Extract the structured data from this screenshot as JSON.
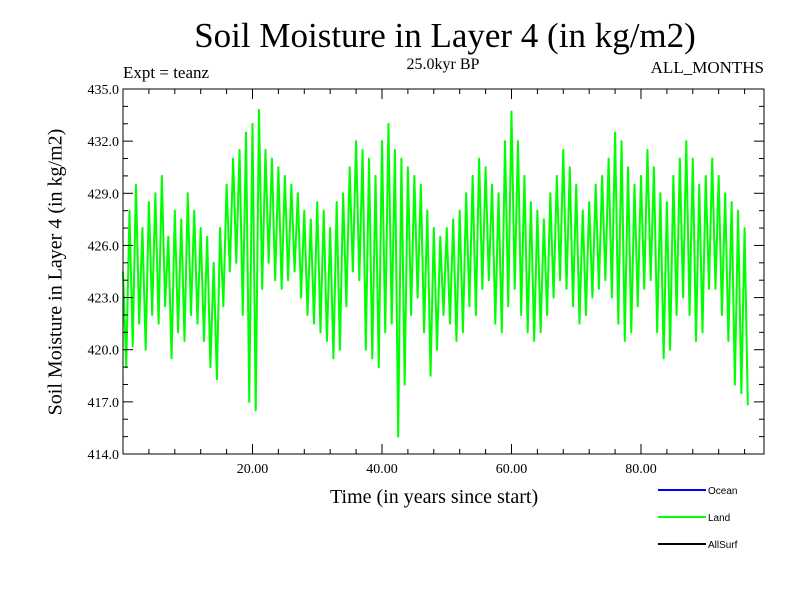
{
  "chart_data": {
    "type": "line",
    "title": "Soil Moisture in Layer 4 (in kg/m2)",
    "subtitle": "25.0kyr BP",
    "experiment": "Expt = teanz",
    "months": "ALL_MONTHS",
    "xlabel": "Time (in years since start)",
    "ylabel": "Soil Moisture in Layer 4 (in kg/m2)",
    "xlim": [
      0.0,
      99.0
    ],
    "ylim": [
      414.0,
      435.0
    ],
    "xticks": [
      20.0,
      40.0,
      60.0,
      80.0
    ],
    "xtick_labels": [
      "20.00",
      "40.00",
      "60.00",
      "80.00"
    ],
    "yticks": [
      414.0,
      417.0,
      420.0,
      423.0,
      426.0,
      429.0,
      432.0,
      435.0
    ],
    "ytick_labels": [
      "414.0",
      "417.0",
      "420.0",
      "423.0",
      "426.0",
      "429.0",
      "432.0",
      "435.0"
    ],
    "legend": [
      {
        "name": "Ocean",
        "color": "#0000ff"
      },
      {
        "name": "Land",
        "color": "#00ff00"
      },
      {
        "name": "AllSurf",
        "color": "#000000"
      }
    ],
    "series": [
      {
        "name": "Land",
        "color": "#00ff00",
        "x_start": 0.0,
        "x_step": 0.5,
        "values": [
          424.5,
          419.0,
          428.0,
          420.2,
          429.5,
          421.5,
          427.0,
          420.0,
          428.5,
          422.0,
          429.0,
          421.5,
          430.0,
          422.5,
          426.5,
          419.5,
          428.0,
          421.0,
          427.5,
          420.5,
          429.0,
          422.0,
          428.0,
          421.5,
          427.0,
          420.5,
          426.5,
          419.0,
          425.0,
          418.3,
          427.0,
          422.5,
          429.5,
          424.5,
          431.0,
          425.0,
          431.5,
          422.0,
          432.5,
          417.0,
          433.0,
          416.5,
          433.8,
          423.5,
          431.5,
          425.0,
          431.0,
          424.0,
          430.5,
          423.5,
          430.0,
          424.0,
          429.5,
          424.5,
          429.0,
          423.0,
          428.0,
          422.0,
          427.5,
          421.5,
          428.5,
          421.0,
          428.0,
          420.5,
          427.0,
          419.5,
          428.5,
          420.0,
          429.0,
          422.5,
          430.5,
          424.5,
          432.0,
          424.0,
          431.5,
          420.0,
          431.0,
          419.5,
          430.0,
          419.0,
          432.0,
          421.0,
          433.0,
          421.5,
          431.5,
          415.0,
          431.0,
          418.0,
          430.5,
          422.0,
          430.0,
          423.0,
          429.5,
          421.0,
          428.0,
          418.5,
          427.0,
          420.0,
          426.5,
          422.0,
          427.0,
          421.5,
          427.5,
          420.5,
          428.0,
          421.0,
          429.0,
          422.5,
          430.0,
          422.0,
          431.0,
          423.5,
          430.5,
          424.0,
          429.5,
          421.5,
          429.0,
          421.0,
          432.0,
          422.5,
          433.7,
          423.5,
          432.0,
          422.0,
          430.0,
          421.0,
          428.5,
          420.5,
          428.0,
          421.0,
          427.5,
          422.0,
          429.0,
          423.0,
          430.0,
          424.0,
          431.5,
          423.5,
          430.5,
          422.5,
          429.5,
          421.5,
          428.0,
          422.0,
          428.5,
          423.0,
          429.5,
          423.5,
          430.0,
          424.0,
          431.0,
          423.0,
          432.5,
          421.5,
          432.0,
          420.5,
          430.5,
          421.0,
          429.5,
          422.5,
          430.0,
          423.5,
          431.5,
          424.0,
          430.5,
          421.0,
          429.0,
          419.5,
          428.5,
          420.0,
          430.0,
          422.0,
          431.0,
          423.0,
          432.0,
          422.0,
          431.0,
          420.5,
          429.5,
          421.0,
          430.0,
          423.5,
          431.0,
          423.5,
          430.0,
          422.0,
          429.0,
          420.5,
          428.5,
          418.0,
          428.0,
          417.5,
          427.0,
          416.8
        ]
      }
    ]
  }
}
